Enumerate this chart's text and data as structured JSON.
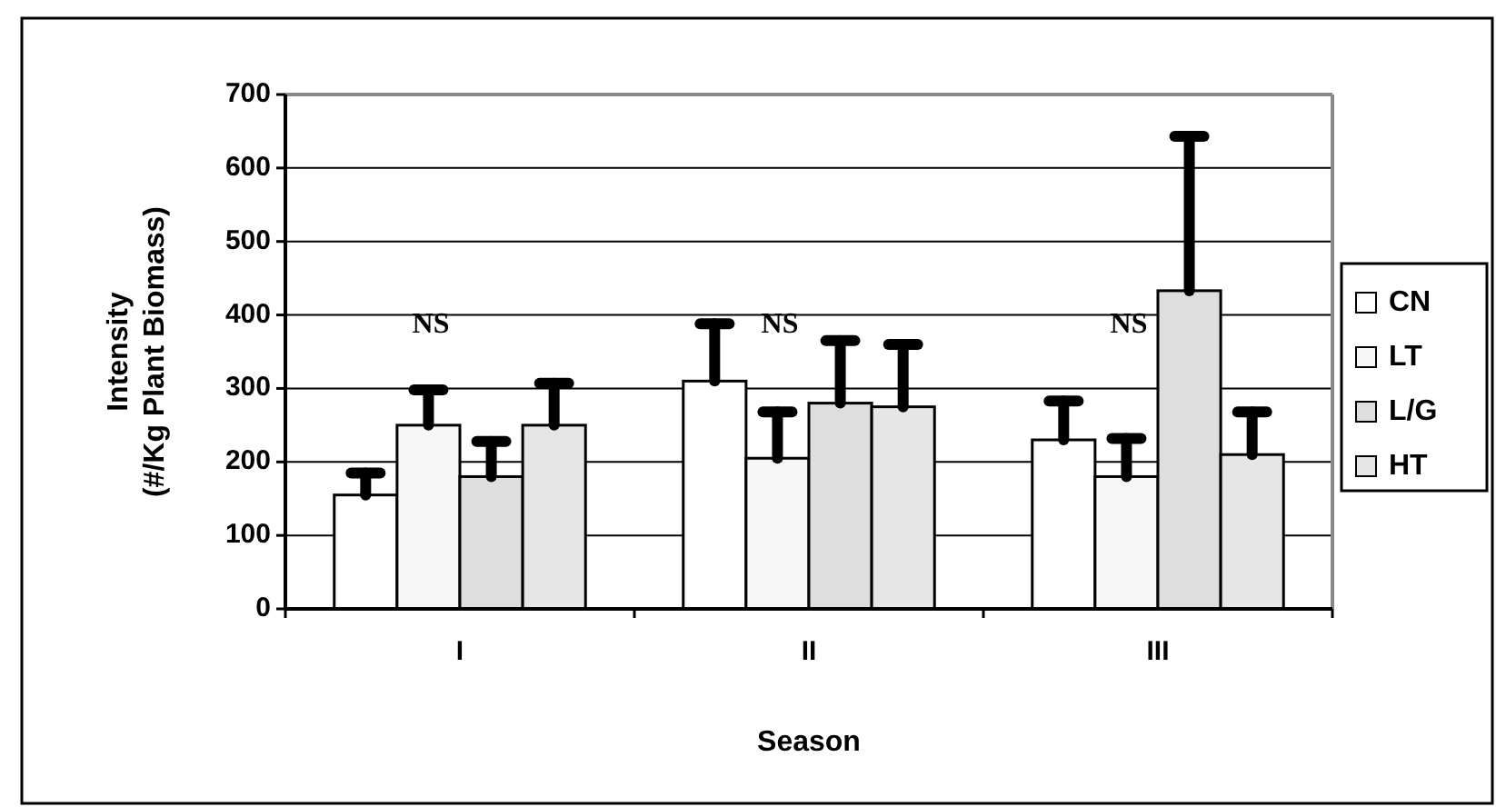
{
  "chart_data": {
    "type": "bar",
    "xlabel": "Season",
    "ylabel": "Intensity\n(#/Kg Plant Biomass)",
    "categories": [
      "I",
      "II",
      "III"
    ],
    "series": [
      {
        "name": "CN",
        "color": "#ffffff",
        "values": [
          155,
          310,
          230
        ],
        "errors": [
          [
            155,
            185
          ],
          [
            310,
            388
          ],
          [
            230,
            283
          ]
        ]
      },
      {
        "name": "LT",
        "color": "#f7f7f7",
        "values": [
          250,
          205,
          180
        ],
        "errors": [
          [
            250,
            298
          ],
          [
            205,
            268
          ],
          [
            180,
            232
          ]
        ]
      },
      {
        "name": "L/G",
        "color": "#dedede",
        "values": [
          180,
          280,
          433
        ],
        "errors": [
          [
            180,
            228
          ],
          [
            280,
            365
          ],
          [
            433,
            643
          ]
        ]
      },
      {
        "name": "HT",
        "color": "#e6e6e6",
        "values": [
          250,
          275,
          210
        ],
        "errors": [
          [
            250,
            307
          ],
          [
            275,
            360
          ],
          [
            210,
            268
          ]
        ]
      }
    ],
    "ylim": [
      0,
      700
    ],
    "yticks": [
      0,
      100,
      200,
      300,
      400,
      500,
      600,
      700
    ],
    "grid": "y",
    "legend": "right",
    "annotations": [
      "NS",
      "NS",
      "NS"
    ]
  }
}
